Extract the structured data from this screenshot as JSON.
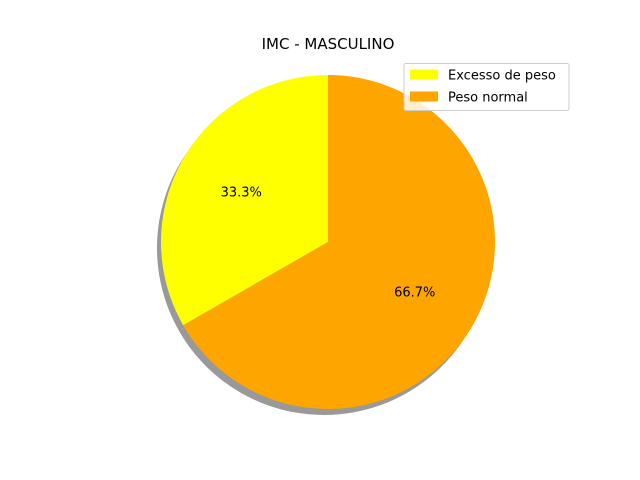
{
  "chart_data": {
    "type": "pie",
    "title": "IMC - MASCULINO",
    "slices": [
      {
        "label": "Excesso de peso",
        "value": 33.3,
        "pct_label": "33.3%",
        "color": "#ffff00"
      },
      {
        "label": "Peso normal",
        "value": 66.7,
        "pct_label": "66.7%",
        "color": "#ffa500"
      }
    ],
    "start_angle_deg": 90,
    "direction": "counterclockwise",
    "shadow": true,
    "legend_position": "top-right"
  }
}
